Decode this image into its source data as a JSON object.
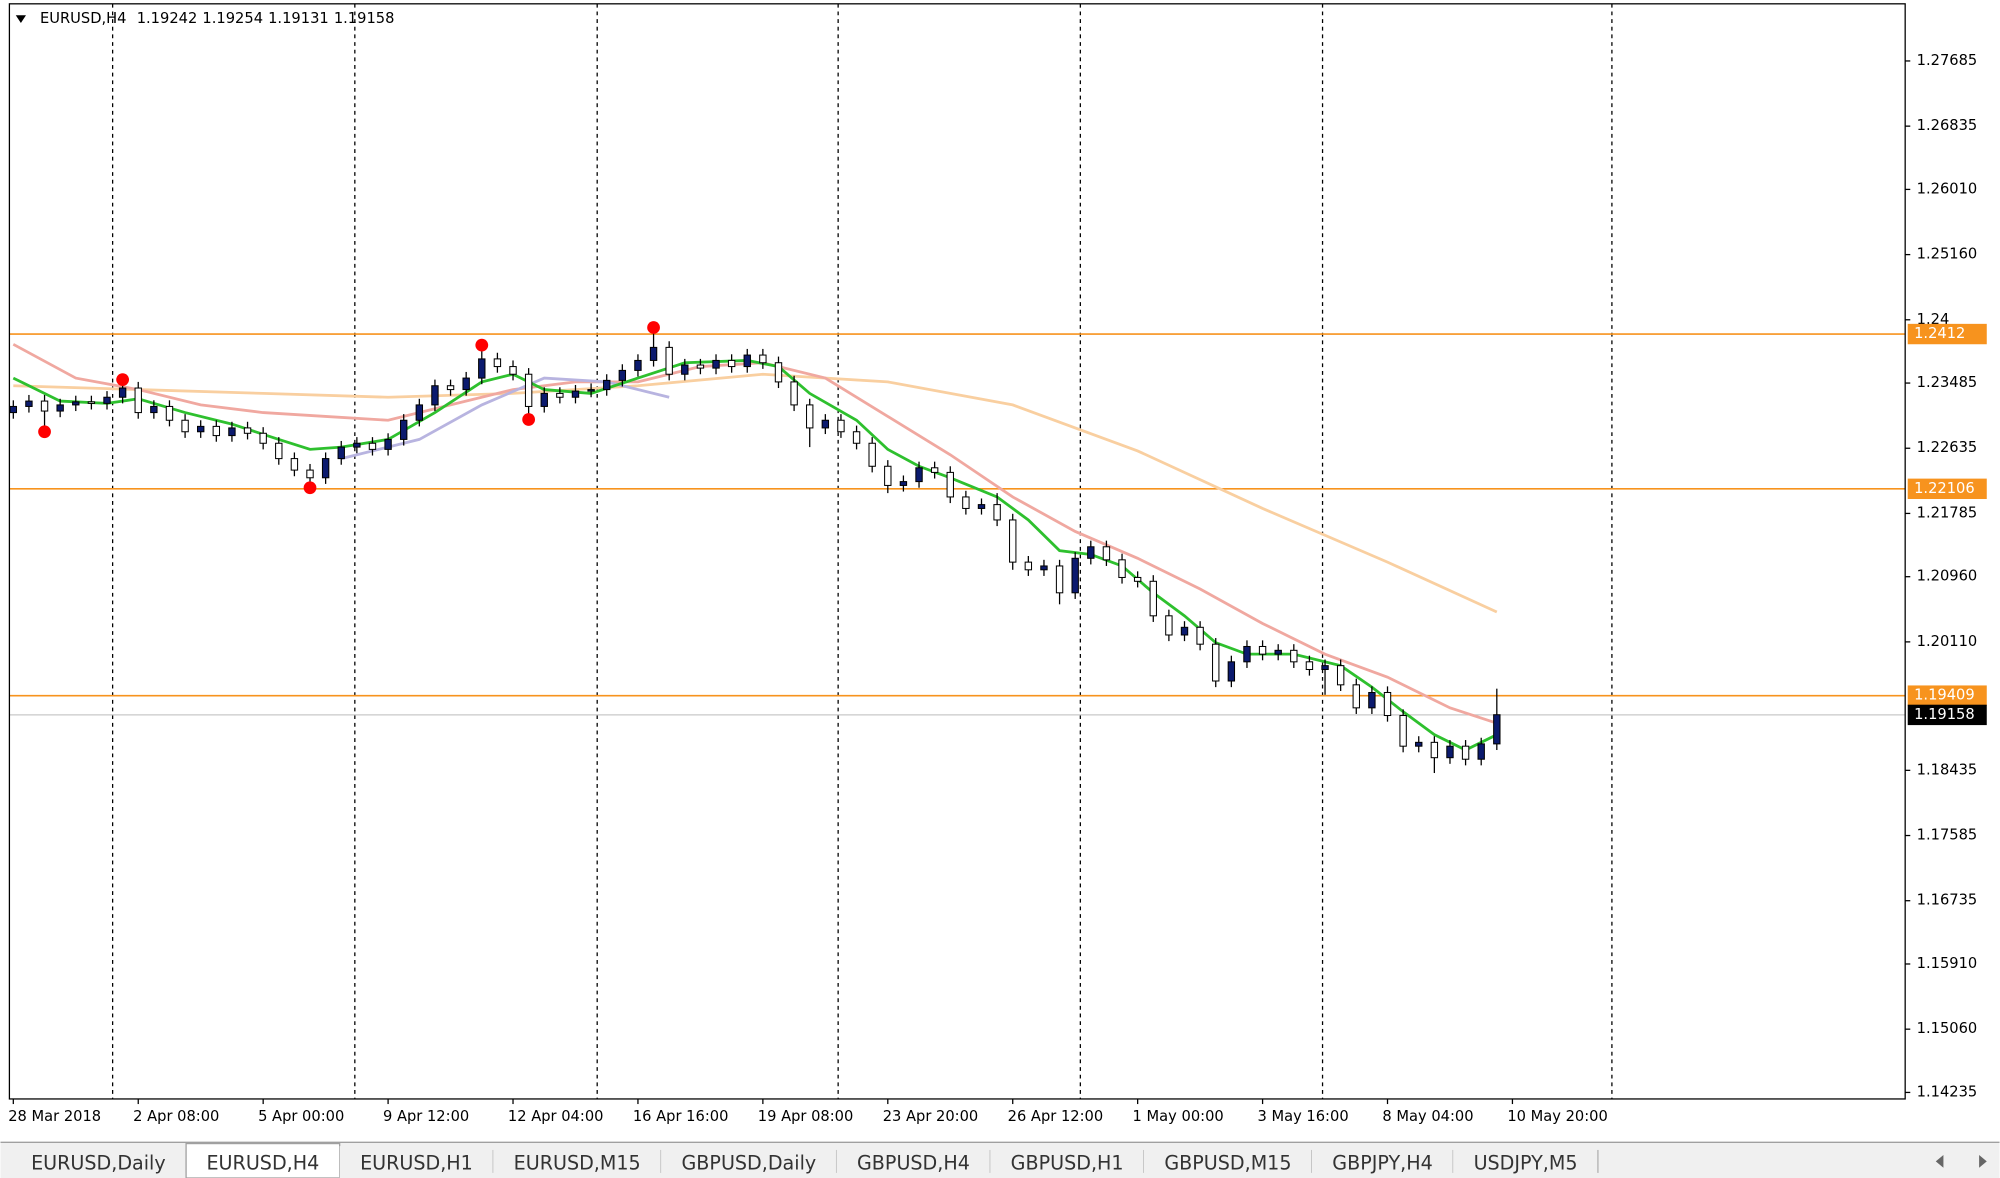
{
  "header": {
    "symbol": "EURUSD,H4",
    "ohlc": [
      1.19242,
      1.19254,
      1.19131,
      1.19158
    ]
  },
  "chart_data": {
    "type": "candlestick",
    "open": [
      1.231,
      1.2318,
      1.2325,
      1.2312,
      1.232,
      1.2324,
      1.2322,
      1.233,
      1.2342,
      1.231,
      1.2318,
      1.23,
      1.2285,
      1.2292,
      1.228,
      1.229,
      1.2283,
      1.227,
      1.225,
      1.2235,
      1.2225,
      1.225,
      1.2265,
      1.227,
      1.2262,
      1.2275,
      1.23,
      1.232,
      1.2345,
      1.234,
      1.2355,
      1.238,
      1.237,
      1.236,
      1.2318,
      1.2335,
      1.233,
      1.2338,
      1.234,
      1.2352,
      1.2365,
      1.2378,
      1.2395,
      1.236,
      1.2372,
      1.2368,
      1.2378,
      1.237,
      1.2385,
      1.2375,
      1.235,
      1.232,
      1.229,
      1.23,
      1.2285,
      1.227,
      1.224,
      1.2215,
      1.222,
      1.2238,
      1.2232,
      1.22,
      1.2185,
      1.219,
      1.217,
      1.2115,
      1.2105,
      1.211,
      1.2075,
      1.212,
      1.2135,
      1.2118,
      1.2095,
      1.209,
      1.2045,
      1.202,
      1.203,
      1.2008,
      1.196,
      1.1985,
      1.2005,
      1.1995,
      1.2,
      1.1985,
      1.1975,
      1.198,
      1.1955,
      1.1925,
      1.1945,
      1.1915,
      1.1875,
      1.188,
      1.186,
      1.1875,
      1.1858,
      1.1878
    ],
    "high": [
      1.2326,
      1.2333,
      1.2333,
      1.2328,
      1.2332,
      1.2332,
      1.2338,
      1.235,
      1.235,
      1.2326,
      1.2326,
      1.2308,
      1.23,
      1.23,
      1.2298,
      1.2298,
      1.2291,
      1.2278,
      1.2258,
      1.2243,
      1.2258,
      1.2273,
      1.2278,
      1.2278,
      1.2283,
      1.2308,
      1.2328,
      1.2353,
      1.2353,
      1.2363,
      1.2395,
      1.2388,
      1.2378,
      1.2368,
      1.2343,
      1.2343,
      1.2346,
      1.2348,
      1.236,
      1.2373,
      1.2386,
      1.2418,
      1.2403,
      1.238,
      1.238,
      1.2386,
      1.2386,
      1.2393,
      1.2393,
      1.2383,
      1.2358,
      1.2328,
      1.2308,
      1.2308,
      1.2293,
      1.2278,
      1.2248,
      1.2228,
      1.2246,
      1.2246,
      1.224,
      1.2208,
      1.2198,
      1.2205,
      1.2178,
      1.2123,
      1.2118,
      1.2118,
      1.2128,
      1.2143,
      1.2143,
      1.2126,
      1.2103,
      1.2098,
      1.2053,
      1.2038,
      1.2038,
      1.2016,
      1.1993,
      1.2013,
      1.2013,
      1.2008,
      1.2008,
      1.1993,
      1.1988,
      1.1988,
      1.1963,
      1.1953,
      1.1953,
      1.1923,
      1.1888,
      1.1888,
      1.1883,
      1.1883,
      1.1886,
      1.195
    ],
    "low": [
      1.2302,
      1.231,
      1.229,
      1.2304,
      1.2312,
      1.2314,
      1.2314,
      1.2322,
      1.2302,
      1.2302,
      1.2292,
      1.2277,
      1.2277,
      1.2272,
      1.2272,
      1.2275,
      1.2262,
      1.2242,
      1.2227,
      1.221,
      1.2217,
      1.2242,
      1.2257,
      1.2254,
      1.2254,
      1.2267,
      1.2292,
      1.2312,
      1.2332,
      1.2332,
      1.2347,
      1.2362,
      1.2352,
      1.2305,
      1.231,
      1.2322,
      1.2322,
      1.233,
      1.2332,
      1.2344,
      1.2357,
      1.237,
      1.2352,
      1.2352,
      1.236,
      1.236,
      1.2362,
      1.2362,
      1.2367,
      1.2342,
      1.2312,
      1.2265,
      1.2282,
      1.2277,
      1.2262,
      1.2232,
      1.2205,
      1.2207,
      1.2212,
      1.2224,
      1.2192,
      1.2177,
      1.2177,
      1.2162,
      1.2105,
      1.2097,
      1.2097,
      1.206,
      1.2067,
      1.2112,
      1.211,
      1.2087,
      1.2082,
      1.2037,
      1.2012,
      1.2012,
      1.2,
      1.1952,
      1.1952,
      1.1977,
      1.1987,
      1.1987,
      1.1977,
      1.1967,
      1.1942,
      1.1947,
      1.1917,
      1.1917,
      1.1907,
      1.1867,
      1.1867,
      1.184,
      1.1852,
      1.185,
      1.185,
      1.187
    ],
    "close": [
      1.2318,
      1.2325,
      1.2312,
      1.232,
      1.2324,
      1.2322,
      1.233,
      1.2342,
      1.231,
      1.2318,
      1.23,
      1.2285,
      1.2292,
      1.228,
      1.229,
      1.2283,
      1.227,
      1.225,
      1.2235,
      1.2225,
      1.225,
      1.2265,
      1.227,
      1.2262,
      1.2275,
      1.23,
      1.232,
      1.2345,
      1.234,
      1.2355,
      1.238,
      1.237,
      1.236,
      1.2318,
      1.2335,
      1.233,
      1.2338,
      1.234,
      1.2352,
      1.2365,
      1.2378,
      1.2395,
      1.236,
      1.2372,
      1.2368,
      1.2378,
      1.237,
      1.2385,
      1.2375,
      1.235,
      1.232,
      1.229,
      1.23,
      1.2285,
      1.227,
      1.224,
      1.2215,
      1.222,
      1.2238,
      1.2232,
      1.22,
      1.2185,
      1.219,
      1.217,
      1.2115,
      1.2105,
      1.211,
      1.2075,
      1.212,
      1.2135,
      1.2118,
      1.2095,
      1.209,
      1.2045,
      1.202,
      1.203,
      1.2008,
      1.196,
      1.1985,
      1.2005,
      1.1995,
      1.2,
      1.1985,
      1.1975,
      1.198,
      1.1955,
      1.1925,
      1.1945,
      1.1915,
      1.1875,
      1.188,
      1.186,
      1.1875,
      1.1858,
      1.1878,
      1.1916
    ],
    "up_color": "#0b1a6e",
    "down_color": "#ffffff",
    "wick_color": "#000000",
    "xlim": [
      -0.25,
      121.15
    ],
    "xticks": [
      {
        "value": 0,
        "label": "28 Mar 2018"
      },
      {
        "value": 8,
        "label": "2 Apr 08:00"
      },
      {
        "value": 16,
        "label": "5 Apr 00:00"
      },
      {
        "value": 24,
        "label": "9 Apr 12:00"
      },
      {
        "value": 32,
        "label": "12 Apr 04:00"
      },
      {
        "value": 40,
        "label": "16 Apr 16:00"
      },
      {
        "value": 48,
        "label": "19 Apr 08:00"
      },
      {
        "value": 56,
        "label": "23 Apr 20:00"
      },
      {
        "value": 64,
        "label": "26 Apr 12:00"
      },
      {
        "value": 72,
        "label": "1 May 00:00"
      },
      {
        "value": 80,
        "label": "3 May 16:00"
      },
      {
        "value": 88,
        "label": "8 May 04:00"
      },
      {
        "value": 96,
        "label": "10 May 20:00"
      }
    ],
    "xgrid": [
      6.36,
      21.87,
      37.39,
      52.82,
      68.33,
      83.84,
      102.37
    ],
    "ylim": [
      1.1415,
      1.2843
    ],
    "yticks": [
      1.27685,
      1.26835,
      {
        "value": 1.2601,
        "label": "1.26010"
      },
      {
        "value": 1.2516,
        "label": "1.25160"
      },
      {
        "value": 1.2431,
        "label": "1.24"
      },
      1.23485,
      1.22635,
      1.21785,
      {
        "value": 1.2096,
        "label": "1.20960"
      },
      {
        "value": 1.2011,
        "label": "1.20110"
      },
      1.18435,
      1.17585,
      1.16735,
      {
        "value": 1.1591,
        "label": "1.15910"
      },
      {
        "value": 1.1506,
        "label": "1.15060"
      },
      1.14235
    ],
    "lines": [
      {
        "color": "#f9cfa0",
        "x": [
          0,
          8,
          16,
          24,
          32,
          40,
          48,
          56,
          64,
          72,
          80,
          88,
          95
        ],
        "values": [
          1.2345,
          1.234,
          1.2335,
          1.233,
          1.2335,
          1.2345,
          1.236,
          1.235,
          1.232,
          1.226,
          1.2185,
          1.2115,
          1.205
        ]
      },
      {
        "color": "#f0a8a0",
        "x": [
          0,
          4,
          8,
          12,
          16,
          20,
          24,
          28,
          32,
          36,
          40,
          44,
          48,
          52,
          56,
          60,
          64,
          68,
          72,
          76,
          80,
          84,
          88,
          92,
          95
        ],
        "values": [
          1.2399,
          1.2355,
          1.234,
          1.232,
          1.231,
          1.2305,
          1.23,
          1.232,
          1.234,
          1.235,
          1.235,
          1.237,
          1.2375,
          1.2355,
          1.2305,
          1.2255,
          1.22,
          1.2155,
          1.212,
          1.208,
          1.2035,
          1.1995,
          1.1965,
          1.1925,
          1.1905
        ]
      },
      {
        "color": "#b8b4e0",
        "x": [
          21,
          26,
          30,
          34,
          38,
          42
        ],
        "values": [
          1.225,
          1.2275,
          1.232,
          1.2355,
          1.235,
          1.233
        ]
      },
      {
        "color": "#2ec02e",
        "x": [
          0,
          3,
          6,
          8,
          11,
          14,
          17,
          19,
          21,
          24,
          27,
          30,
          32,
          34,
          37,
          40,
          43,
          47,
          49,
          51,
          54,
          56,
          58,
          60,
          63,
          65,
          67,
          69,
          71,
          73,
          75,
          77,
          79,
          82,
          85,
          87,
          89,
          91,
          93,
          95
        ],
        "values": [
          1.2355,
          1.2325,
          1.2322,
          1.2328,
          1.231,
          1.2295,
          1.2275,
          1.2262,
          1.2265,
          1.2275,
          1.231,
          1.235,
          1.236,
          1.234,
          1.2335,
          1.2355,
          1.2375,
          1.2378,
          1.237,
          1.2335,
          1.23,
          1.2262,
          1.224,
          1.2225,
          1.22,
          1.217,
          1.213,
          1.2125,
          1.211,
          1.2075,
          1.2045,
          1.201,
          1.1995,
          1.1995,
          1.198,
          1.1952,
          1.192,
          1.189,
          1.187,
          1.189
        ]
      }
    ],
    "markers": {
      "color": "#ff0000",
      "x": [
        2,
        7,
        19,
        30,
        33,
        41
      ],
      "values": [
        1.2285,
        1.2353,
        1.2212,
        1.2398,
        1.2301,
        1.2421
      ]
    },
    "levels": [
      {
        "value": 1.24124,
        "label": "1.2412"
      },
      1.22106,
      1.19409
    ],
    "level_color": "#f7931e",
    "current": 1.19158,
    "current_color": "#c8c8c8"
  },
  "tabs": {
    "items": [
      "EURUSD,Daily",
      "EURUSD,H4",
      "EURUSD,H1",
      "EURUSD,M15",
      "GBPUSD,Daily",
      "GBPUSD,H4",
      "GBPUSD,H1",
      "GBPUSD,M15",
      "GBPJPY,H4",
      "USDJPY,M5"
    ],
    "active": 1
  }
}
